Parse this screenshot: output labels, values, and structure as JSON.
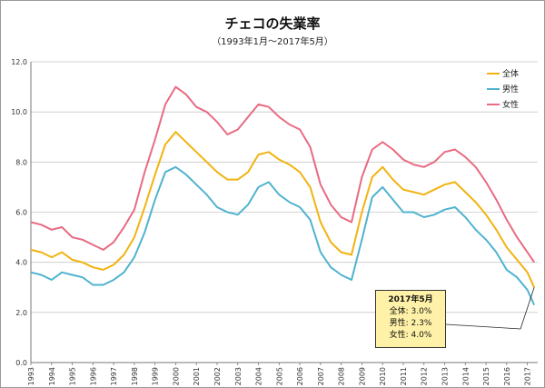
{
  "chart_data": {
    "type": "line",
    "title": "チェコの失業率",
    "subtitle": "（1993年1月～2017年5月）",
    "xlabel": "",
    "ylabel": "",
    "ylim": [
      0,
      12
    ],
    "yticks": [
      "0.0",
      "2.0",
      "4.0",
      "6.0",
      "8.0",
      "10.0",
      "12.0"
    ],
    "xlim": [
      1993,
      2017.5
    ],
    "xticks": [
      "1993",
      "1994",
      "1995",
      "1996",
      "1997",
      "1998",
      "1999",
      "2000",
      "2001",
      "2002",
      "2003",
      "2004",
      "2005",
      "2006",
      "2007",
      "2008",
      "2009",
      "2010",
      "2011",
      "2012",
      "2013",
      "2014",
      "2015",
      "2016",
      "2017"
    ],
    "grid": "horizontal",
    "legend": "top-right",
    "x": [
      1993.0,
      1993.5,
      1994.0,
      1994.5,
      1995.0,
      1995.5,
      1996.0,
      1996.5,
      1997.0,
      1997.5,
      1998.0,
      1998.5,
      1999.0,
      1999.5,
      2000.0,
      2000.5,
      2001.0,
      2001.5,
      2002.0,
      2002.5,
      2003.0,
      2003.5,
      2004.0,
      2004.5,
      2005.0,
      2005.5,
      2006.0,
      2006.5,
      2007.0,
      2007.5,
      2008.0,
      2008.5,
      2009.0,
      2009.5,
      2010.0,
      2010.5,
      2011.0,
      2011.5,
      2012.0,
      2012.5,
      2013.0,
      2013.5,
      2014.0,
      2014.5,
      2015.0,
      2015.5,
      2016.0,
      2016.5,
      2017.0,
      2017.33
    ],
    "series": [
      {
        "name": "全体",
        "color": "#f2b311",
        "values": [
          4.5,
          4.4,
          4.2,
          4.4,
          4.1,
          4.0,
          3.8,
          3.7,
          3.9,
          4.3,
          5.0,
          6.2,
          7.5,
          8.7,
          9.2,
          8.8,
          8.4,
          8.0,
          7.6,
          7.3,
          7.3,
          7.6,
          8.3,
          8.4,
          8.1,
          7.9,
          7.6,
          7.0,
          5.6,
          4.8,
          4.4,
          4.3,
          6.0,
          7.4,
          7.8,
          7.3,
          6.9,
          6.8,
          6.7,
          6.9,
          7.1,
          7.2,
          6.8,
          6.4,
          5.9,
          5.3,
          4.6,
          4.1,
          3.6,
          3.0
        ]
      },
      {
        "name": "男性",
        "color": "#4fb3cf",
        "values": [
          3.6,
          3.5,
          3.3,
          3.6,
          3.5,
          3.4,
          3.1,
          3.1,
          3.3,
          3.6,
          4.2,
          5.2,
          6.5,
          7.6,
          7.8,
          7.5,
          7.1,
          6.7,
          6.2,
          6.0,
          5.9,
          6.3,
          7.0,
          7.2,
          6.7,
          6.4,
          6.2,
          5.7,
          4.4,
          3.8,
          3.5,
          3.3,
          4.9,
          6.6,
          7.0,
          6.5,
          6.0,
          6.0,
          5.8,
          5.9,
          6.1,
          6.2,
          5.8,
          5.3,
          4.9,
          4.4,
          3.7,
          3.4,
          2.9,
          2.3
        ]
      },
      {
        "name": "女性",
        "color": "#e86b82",
        "values": [
          5.6,
          5.5,
          5.3,
          5.4,
          5.0,
          4.9,
          4.7,
          4.5,
          4.8,
          5.4,
          6.1,
          7.6,
          8.9,
          10.3,
          11.0,
          10.7,
          10.2,
          10.0,
          9.6,
          9.1,
          9.3,
          9.8,
          10.3,
          10.2,
          9.8,
          9.5,
          9.3,
          8.6,
          7.1,
          6.3,
          5.8,
          5.6,
          7.4,
          8.5,
          8.8,
          8.5,
          8.1,
          7.9,
          7.8,
          8.0,
          8.4,
          8.5,
          8.2,
          7.8,
          7.2,
          6.5,
          5.7,
          5.0,
          4.4,
          4.0
        ]
      }
    ],
    "annotation": {
      "title": "2017年5月",
      "lines": [
        "全体: 3.0%",
        "男性: 2.3%",
        "女性: 4.0%"
      ]
    }
  }
}
